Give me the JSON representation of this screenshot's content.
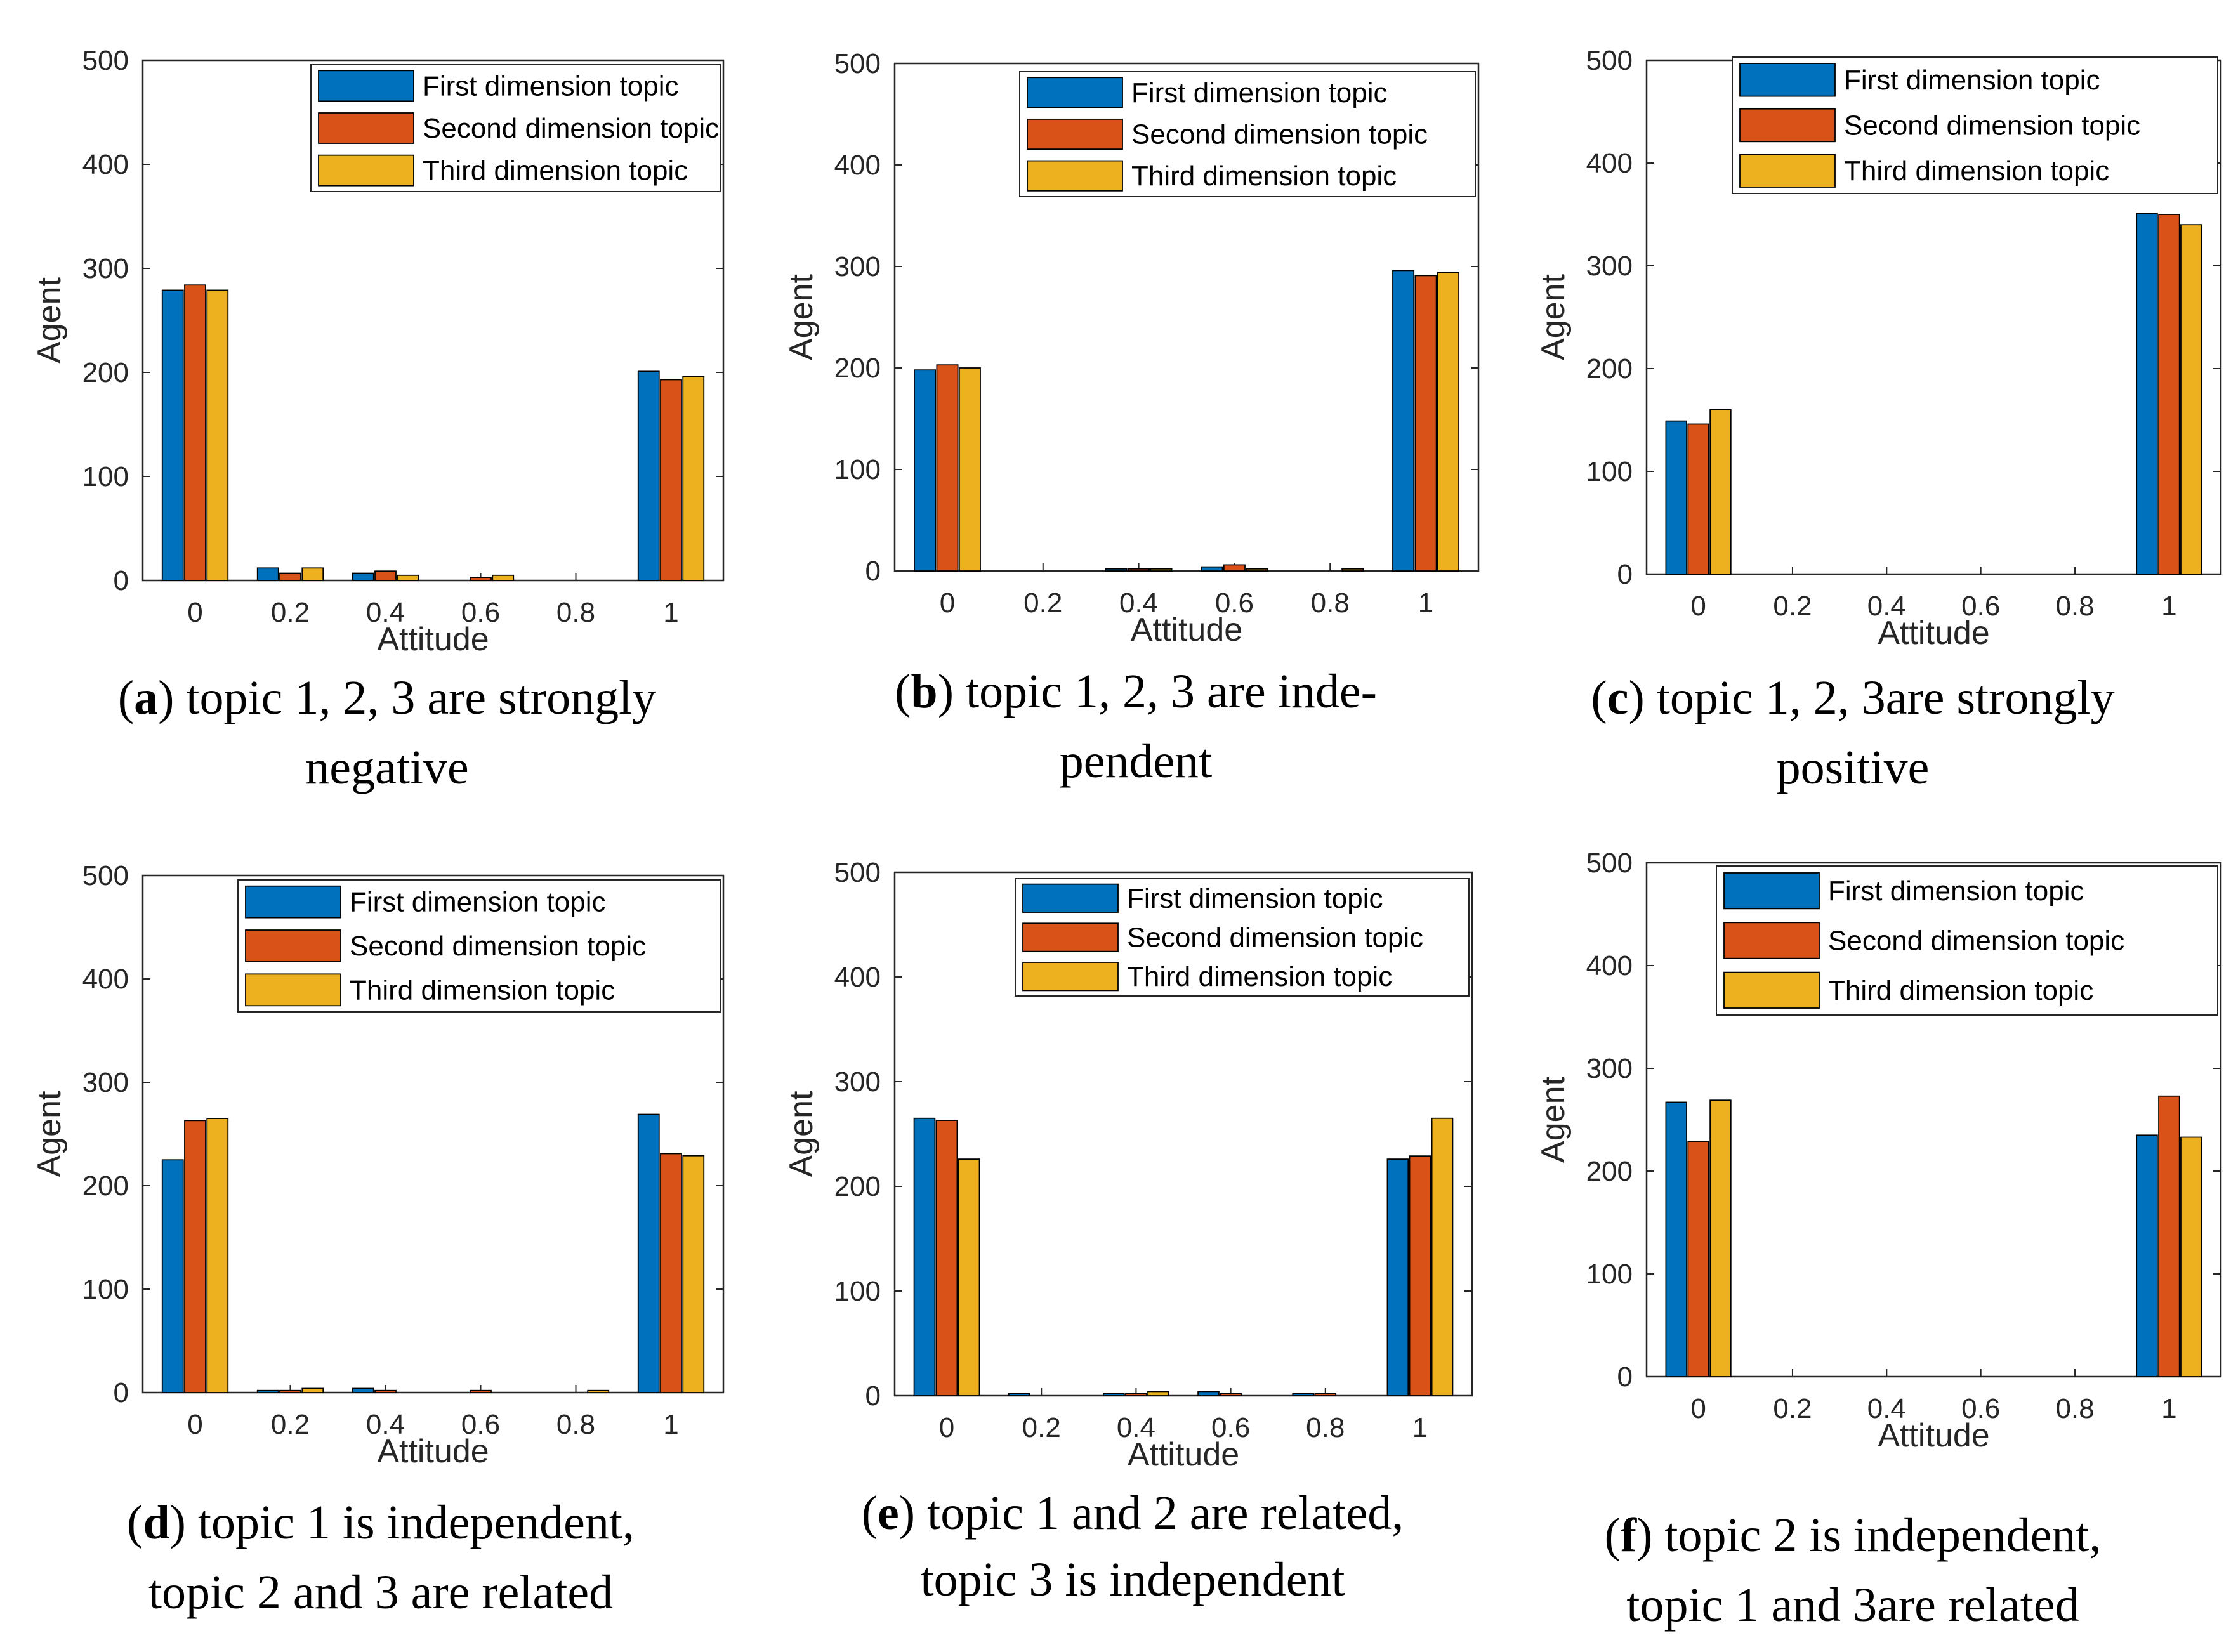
{
  "figure": {
    "series_names": [
      "First dimension topic",
      "Second dimension topic",
      "Third dimension topic"
    ],
    "colors": [
      "#0072BD",
      "#D95319",
      "#EDB120"
    ],
    "xlabel": "Attitude",
    "ylabel": "Agent"
  },
  "chart_data": [
    {
      "type": "bar",
      "letter": "a",
      "caption": [
        "topic 1, 2, 3 are strongly",
        "negative"
      ],
      "xlabel": "Attitude",
      "ylabel": "Agent",
      "categories": [
        "0",
        "0.2",
        "0.4",
        "0.6",
        "0.8",
        "1"
      ],
      "ylim": [
        0,
        500
      ],
      "yticks": [
        0,
        100,
        200,
        300,
        400,
        500
      ],
      "legend": "top-right",
      "series": [
        {
          "name": "First dimension topic",
          "values": [
            279,
            12,
            7,
            0,
            0,
            201
          ]
        },
        {
          "name": "Second dimension topic",
          "values": [
            284,
            7,
            9,
            3,
            0,
            193
          ]
        },
        {
          "name": "Third dimension topic",
          "values": [
            279,
            12,
            5,
            5,
            0,
            196
          ]
        }
      ]
    },
    {
      "type": "bar",
      "letter": "b",
      "caption": [
        "topic 1, 2, 3 are inde-",
        "pendent"
      ],
      "xlabel": "Attitude",
      "ylabel": "Agent",
      "categories": [
        "0",
        "0.2",
        "0.4",
        "0.6",
        "0.8",
        "1"
      ],
      "ylim": [
        0,
        500
      ],
      "yticks": [
        0,
        100,
        200,
        300,
        400,
        500
      ],
      "legend": "top-right",
      "series": [
        {
          "name": "First dimension topic",
          "values": [
            198,
            0,
            2,
            4,
            0,
            296
          ]
        },
        {
          "name": "Second dimension topic",
          "values": [
            203,
            0,
            2,
            6,
            0,
            291
          ]
        },
        {
          "name": "Third dimension topic",
          "values": [
            200,
            0,
            2,
            2,
            2,
            294
          ]
        }
      ]
    },
    {
      "type": "bar",
      "letter": "c",
      "caption": [
        "topic 1, 2, 3are strongly",
        "positive"
      ],
      "xlabel": "Attitude",
      "ylabel": "Agent",
      "categories": [
        "0",
        "0.2",
        "0.4",
        "0.6",
        "0.8",
        "1"
      ],
      "ylim": [
        0,
        500
      ],
      "yticks": [
        0,
        100,
        200,
        300,
        400,
        500
      ],
      "legend": "top-right",
      "series": [
        {
          "name": "First dimension topic",
          "values": [
            149,
            0,
            0,
            0,
            0,
            351
          ]
        },
        {
          "name": "Second dimension topic",
          "values": [
            146,
            0,
            0,
            0,
            0,
            350
          ]
        },
        {
          "name": "Third dimension topic",
          "values": [
            160,
            0,
            0,
            0,
            0,
            340
          ]
        }
      ]
    },
    {
      "type": "bar",
      "letter": "d",
      "caption": [
        "topic 1 is independent,",
        "topic 2 and 3 are related"
      ],
      "xlabel": "Attitude",
      "ylabel": "Agent",
      "categories": [
        "0",
        "0.2",
        "0.4",
        "0.6",
        "0.8",
        "1"
      ],
      "ylim": [
        0,
        500
      ],
      "yticks": [
        0,
        100,
        200,
        300,
        400,
        500
      ],
      "legend": "top-right",
      "series": [
        {
          "name": "First dimension topic",
          "values": [
            225,
            2,
            4,
            0,
            0,
            269
          ]
        },
        {
          "name": "Second dimension topic",
          "values": [
            263,
            2,
            2,
            2,
            0,
            231
          ]
        },
        {
          "name": "Third dimension topic",
          "values": [
            265,
            4,
            0,
            0,
            2,
            229
          ]
        }
      ]
    },
    {
      "type": "bar",
      "letter": "e",
      "caption": [
        "topic 1 and 2 are related,",
        "topic 3 is independent"
      ],
      "xlabel": "Attitude",
      "ylabel": "Agent",
      "categories": [
        "0",
        "0.2",
        "0.4",
        "0.6",
        "0.8",
        "1"
      ],
      "ylim": [
        0,
        500
      ],
      "yticks": [
        0,
        100,
        200,
        300,
        400,
        500
      ],
      "legend": "top-right",
      "series": [
        {
          "name": "First dimension topic",
          "values": [
            265,
            2,
            2,
            4,
            2,
            226
          ]
        },
        {
          "name": "Second dimension topic",
          "values": [
            263,
            0,
            2,
            2,
            2,
            229
          ]
        },
        {
          "name": "Third dimension topic",
          "values": [
            226,
            0,
            4,
            0,
            0,
            265
          ]
        }
      ]
    },
    {
      "type": "bar",
      "letter": "f",
      "caption": [
        "topic 2 is independent,",
        "topic 1 and 3are related"
      ],
      "xlabel": "Attitude",
      "ylabel": "Agent",
      "categories": [
        "0",
        "0.2",
        "0.4",
        "0.6",
        "0.8",
        "1"
      ],
      "ylim": [
        0,
        500
      ],
      "yticks": [
        0,
        100,
        200,
        300,
        400,
        500
      ],
      "legend": "top-right",
      "series": [
        {
          "name": "First dimension topic",
          "values": [
            267,
            0,
            0,
            0,
            0,
            235
          ]
        },
        {
          "name": "Second dimension topic",
          "values": [
            229,
            0,
            0,
            0,
            0,
            273
          ]
        },
        {
          "name": "Third dimension topic",
          "values": [
            269,
            0,
            0,
            0,
            0,
            233
          ]
        }
      ]
    }
  ]
}
